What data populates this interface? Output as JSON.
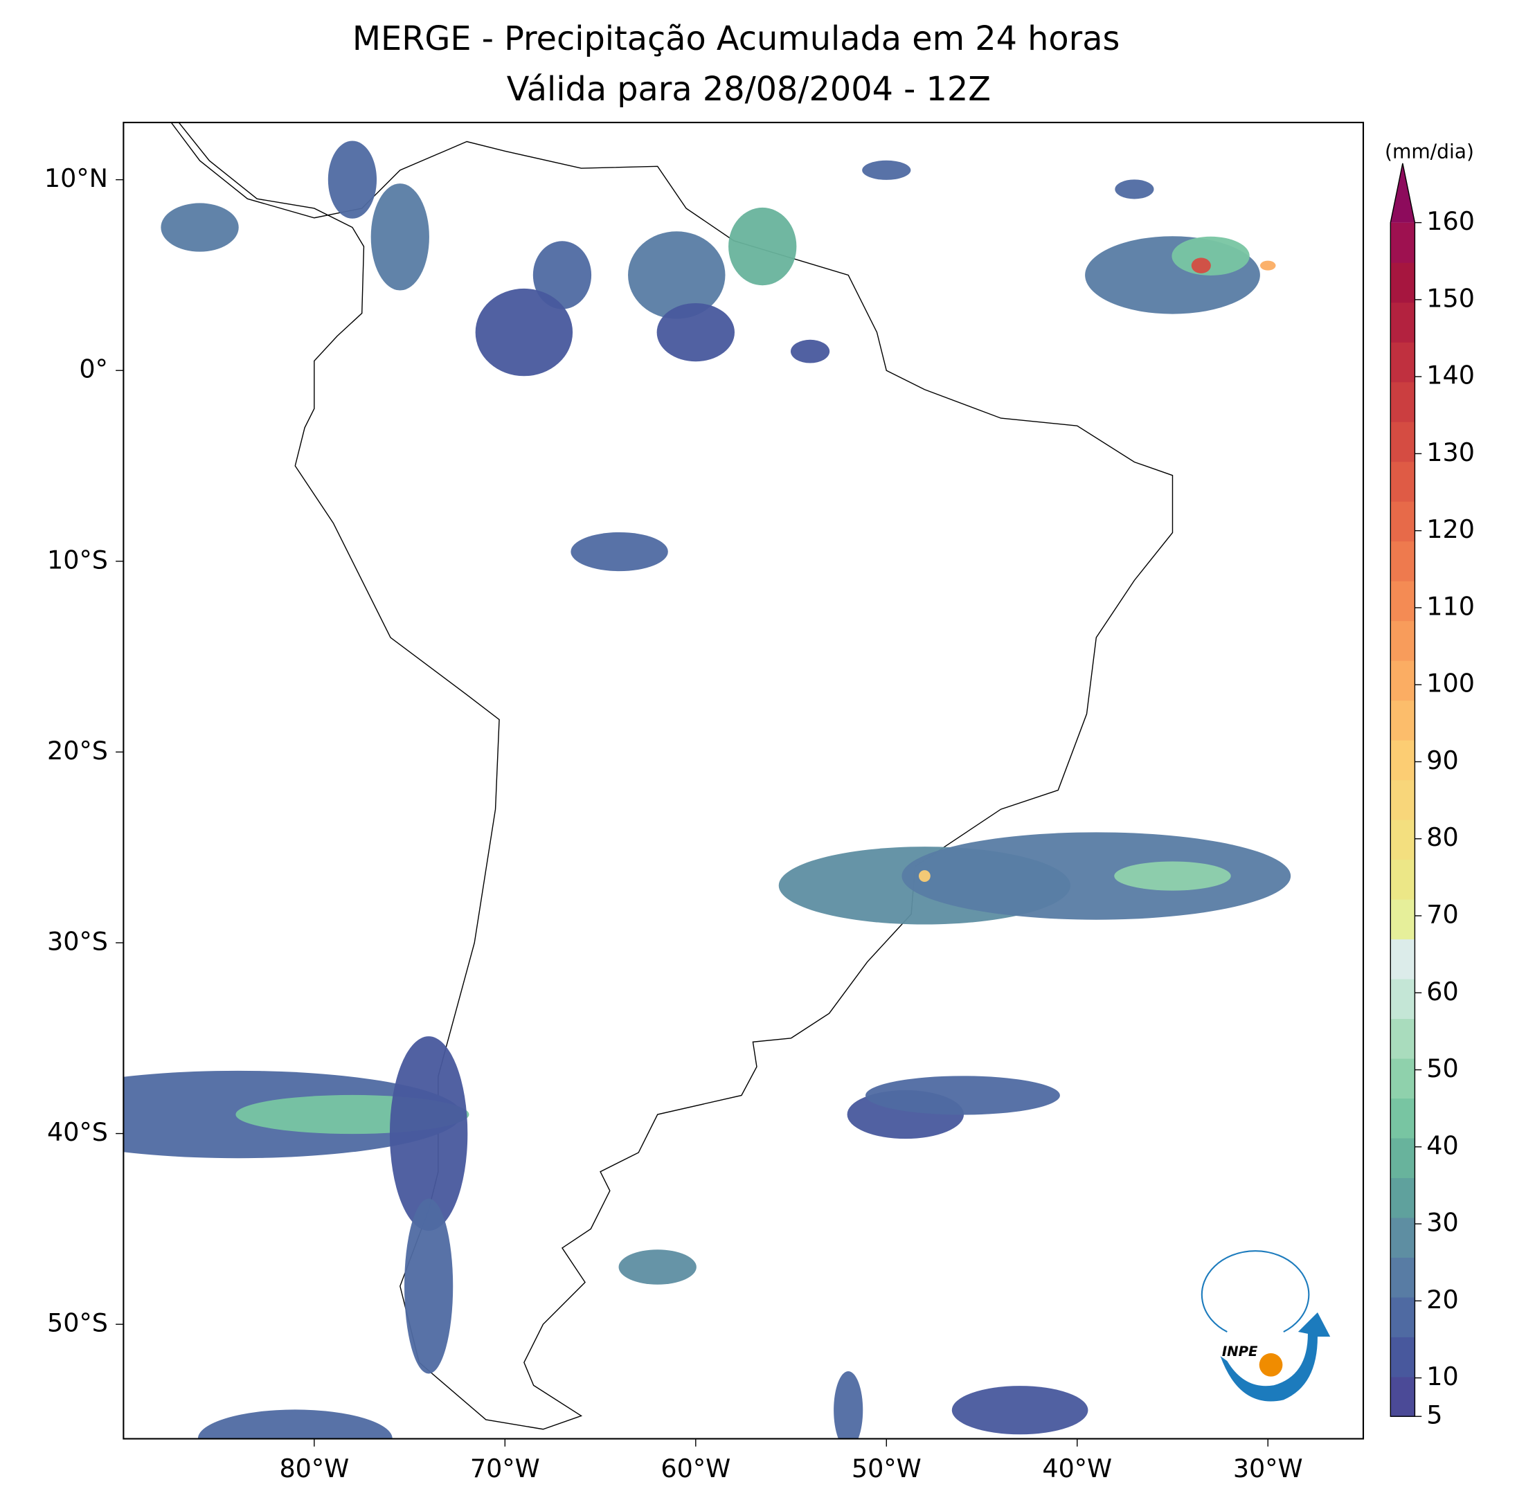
{
  "title": [
    "MERGE - Precipitação Acumulada em 24 horas",
    "Válida para 28/08/2004 - 12Z"
  ],
  "map": {
    "xlim": [
      -90,
      -25
    ],
    "ylim": [
      -56,
      13
    ],
    "xticks": [
      {
        "value": -80,
        "label": "80°W"
      },
      {
        "value": -70,
        "label": "70°W"
      },
      {
        "value": -60,
        "label": "60°W"
      },
      {
        "value": -50,
        "label": "50°W"
      },
      {
        "value": -40,
        "label": "40°W"
      },
      {
        "value": -30,
        "label": "30°W"
      }
    ],
    "yticks": [
      {
        "value": 10,
        "label": "10°N"
      },
      {
        "value": 0,
        "label": "0°"
      },
      {
        "value": -10,
        "label": "10°S"
      },
      {
        "value": -20,
        "label": "20°S"
      },
      {
        "value": -30,
        "label": "30°S"
      },
      {
        "value": -40,
        "label": "40°S"
      },
      {
        "value": -50,
        "label": "50°S"
      }
    ]
  },
  "colorbar": {
    "label": "(mm/dia)",
    "lim": [
      5,
      160
    ],
    "ticks": [
      5,
      10,
      20,
      30,
      40,
      50,
      60,
      70,
      80,
      90,
      100,
      110,
      120,
      130,
      140,
      150,
      160
    ]
  },
  "logo": "INPE"
}
